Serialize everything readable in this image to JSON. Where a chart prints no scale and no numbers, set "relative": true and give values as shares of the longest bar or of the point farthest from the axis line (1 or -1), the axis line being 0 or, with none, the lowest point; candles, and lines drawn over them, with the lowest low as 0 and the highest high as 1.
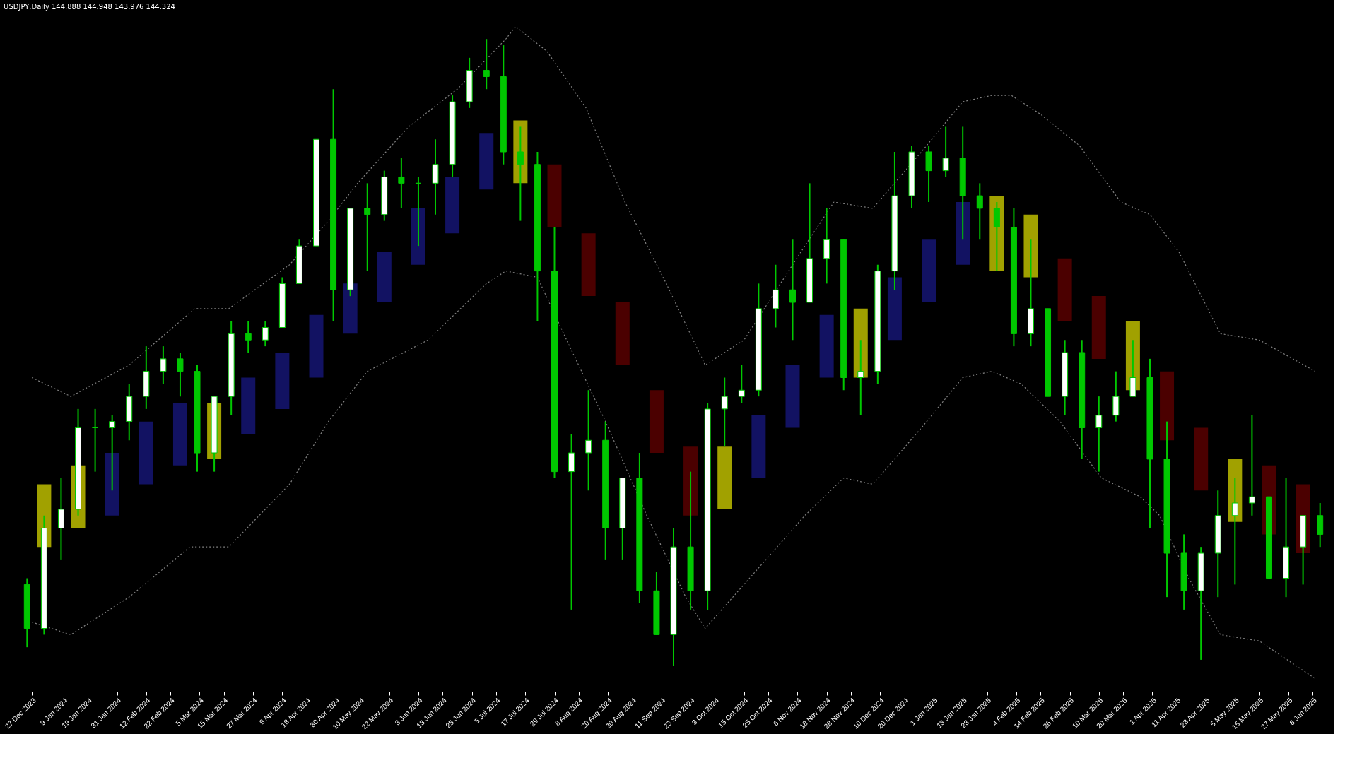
{
  "chart_data": {
    "type": "candlestick",
    "title": "USDJPY,Daily 144.888 144.948 143.976 144.324",
    "relative": true,
    "grid": false,
    "xlim": [
      "2023-12-22",
      "2025-06-12"
    ],
    "xticks": [
      {
        "value": "2023-12-27",
        "label": "27 Dec 2023"
      },
      {
        "value": "2024-01-09",
        "label": "9 Jan 2024"
      },
      {
        "value": "2024-01-19",
        "label": "19 Jan 2024"
      },
      {
        "value": "2024-01-31",
        "label": "31 Jan 2024"
      },
      {
        "value": "2024-02-12",
        "label": "12 Feb 2024"
      },
      {
        "value": "2024-02-22",
        "label": "22 Feb 2024"
      },
      {
        "value": "2024-03-05",
        "label": "5 Mar 2024"
      },
      {
        "value": "2024-03-15",
        "label": "15 Mar 2024"
      },
      {
        "value": "2024-03-27",
        "label": "27 Mar 2024"
      },
      {
        "value": "2024-04-08",
        "label": "8 Apr 2024"
      },
      {
        "value": "2024-04-18",
        "label": "18 Apr 2024"
      },
      {
        "value": "2024-04-30",
        "label": "30 Apr 2024"
      },
      {
        "value": "2024-05-10",
        "label": "10 May 2024"
      },
      {
        "value": "2024-05-22",
        "label": "22 May 2024"
      },
      {
        "value": "2024-06-03",
        "label": "3 Jun 2024"
      },
      {
        "value": "2024-06-13",
        "label": "13 Jun 2024"
      },
      {
        "value": "2024-06-25",
        "label": "25 Jun 2024"
      },
      {
        "value": "2024-07-05",
        "label": "5 Jul 2024"
      },
      {
        "value": "2024-07-17",
        "label": "17 Jul 2024"
      },
      {
        "value": "2024-07-29",
        "label": "29 Jul 2024"
      },
      {
        "value": "2024-08-08",
        "label": "8 Aug 2024"
      },
      {
        "value": "2024-08-20",
        "label": "20 Aug 2024"
      },
      {
        "value": "2024-08-30",
        "label": "30 Aug 2024"
      },
      {
        "value": "2024-09-11",
        "label": "11 Sep 2024"
      },
      {
        "value": "2024-09-23",
        "label": "23 Sep 2024"
      },
      {
        "value": "2024-10-03",
        "label": "3 Oct 2024"
      },
      {
        "value": "2024-10-15",
        "label": "15 Oct 2024"
      },
      {
        "value": "2024-10-25",
        "label": "25 Oct 2024"
      },
      {
        "value": "2024-11-06",
        "label": "6 Nov 2024"
      },
      {
        "value": "2024-11-18",
        "label": "18 Nov 2024"
      },
      {
        "value": "2024-11-28",
        "label": "28 Nov 2024"
      },
      {
        "value": "2024-12-10",
        "label": "10 Dec 2024"
      },
      {
        "value": "2024-12-20",
        "label": "20 Dec 2024"
      },
      {
        "value": "2025-01-01",
        "label": "1 Jan 2025"
      },
      {
        "value": "2025-01-13",
        "label": "13 Jan 2025"
      },
      {
        "value": "2025-01-23",
        "label": "23 Jan 2025"
      },
      {
        "value": "2025-02-04",
        "label": "4 Feb 2025"
      },
      {
        "value": "2025-02-14",
        "label": "14 Feb 2025"
      },
      {
        "value": "2025-02-26",
        "label": "26 Feb 2025"
      },
      {
        "value": "2025-03-10",
        "label": "10 Mar 2025"
      },
      {
        "value": "2025-03-20",
        "label": "20 Mar 2025"
      },
      {
        "value": "2025-04-01",
        "label": "1 Apr 2025"
      },
      {
        "value": "2025-04-11",
        "label": "11 Apr 2025"
      },
      {
        "value": "2025-04-23",
        "label": "23 Apr 2025"
      },
      {
        "value": "2025-05-05",
        "label": "5 May 2025"
      },
      {
        "value": "2025-05-15",
        "label": "15 May 2025"
      },
      {
        "value": "2025-05-27",
        "label": "27 May 2025"
      },
      {
        "value": "2025-06-06",
        "label": "6 Jun 2025"
      }
    ],
    "series": [
      {
        "type": "bar",
        "x": [
          "2024-01-01",
          "2024-01-15",
          "2024-01-29",
          "2024-02-12",
          "2024-02-26",
          "2024-03-11",
          "2024-03-25",
          "2024-04-08",
          "2024-04-22",
          "2024-05-06",
          "2024-05-20",
          "2024-06-03",
          "2024-06-17",
          "2024-07-01",
          "2024-07-15",
          "2024-07-29",
          "2024-08-12",
          "2024-08-26",
          "2024-09-09",
          "2024-09-23",
          "2024-10-07",
          "2024-10-21",
          "2024-11-04",
          "2024-11-18",
          "2024-12-02",
          "2024-12-16",
          "2024-12-30",
          "2025-01-13",
          "2025-01-27",
          "2025-02-10",
          "2025-02-24",
          "2025-03-10",
          "2025-03-24",
          "2025-04-07",
          "2025-04-21",
          "2025-05-05",
          "2025-05-19",
          "2025-06-02"
        ],
        "base": [
          0.19,
          0.22,
          0.24,
          0.29,
          0.32,
          0.33,
          0.37,
          0.41,
          0.46,
          0.53,
          0.58,
          0.64,
          0.69,
          0.76,
          0.77,
          0.7,
          0.59,
          0.48,
          0.34,
          0.24,
          0.25,
          0.3,
          0.38,
          0.46,
          0.46,
          0.52,
          0.58,
          0.64,
          0.63,
          0.62,
          0.55,
          0.49,
          0.44,
          0.36,
          0.28,
          0.23,
          0.21,
          0.18
        ],
        "values": [
          0.1,
          0.1,
          0.1,
          0.1,
          0.1,
          0.09,
          0.09,
          0.09,
          0.1,
          0.08,
          0.08,
          0.09,
          0.09,
          0.09,
          0.1,
          0.1,
          0.1,
          0.1,
          0.1,
          0.11,
          0.1,
          0.1,
          0.1,
          0.1,
          0.11,
          0.1,
          0.1,
          0.1,
          0.12,
          0.1,
          0.1,
          0.1,
          0.11,
          0.11,
          0.1,
          0.1,
          0.11,
          0.11
        ],
        "colors": [
          "#e6e600",
          "#e6e600",
          "#1a1a8c",
          "#1a1a8c",
          "#1a1a8c",
          "#e6e600",
          "#1a1a8c",
          "#1a1a8c",
          "#1a1a8c",
          "#1a1a8c",
          "#1a1a8c",
          "#1a1a8c",
          "#1a1a8c",
          "#1a1a8c",
          "#e6e600",
          "#6b0000",
          "#6b0000",
          "#6b0000",
          "#6b0000",
          "#6b0000",
          "#e6e600",
          "#1a1a8c",
          "#1a1a8c",
          "#1a1a8c",
          "#e6e600",
          "#1a1a8c",
          "#1a1a8c",
          "#1a1a8c",
          "#e6e600",
          "#e6e600",
          "#6b0000",
          "#6b0000",
          "#e6e600",
          "#6b0000",
          "#6b0000",
          "#e6e600",
          "#6b0000",
          "#6b0000"
        ]
      },
      {
        "type": "line",
        "line_style": "dotted",
        "color": "#808080",
        "x": [
          "2023-12-27",
          "2024-01-12",
          "2024-02-05",
          "2024-03-03",
          "2024-03-17",
          "2024-04-11",
          "2024-04-27",
          "2024-05-09",
          "2024-05-30",
          "2024-06-19",
          "2024-07-09",
          "2024-07-13",
          "2024-07-26",
          "2024-08-11",
          "2024-08-27",
          "2024-09-13",
          "2024-09-29",
          "2024-10-15",
          "2024-11-09",
          "2024-11-21",
          "2024-12-07",
          "2024-12-27",
          "2025-01-13",
          "2025-01-25",
          "2025-02-02",
          "2025-02-14",
          "2025-03-02",
          "2025-03-19",
          "2025-03-31",
          "2025-04-12",
          "2025-04-29",
          "2025-05-15",
          "2025-06-07"
        ],
        "values": [
          0.46,
          0.43,
          0.48,
          0.57,
          0.57,
          0.64,
          0.71,
          0.77,
          0.86,
          0.92,
          1.0,
          1.02,
          0.98,
          0.89,
          0.74,
          0.61,
          0.48,
          0.52,
          0.67,
          0.74,
          0.73,
          0.82,
          0.9,
          0.91,
          0.91,
          0.88,
          0.83,
          0.74,
          0.72,
          0.66,
          0.53,
          0.52,
          0.47
        ]
      },
      {
        "type": "line",
        "line_style": "dotted",
        "color": "#808080",
        "x": [
          "2023-12-27",
          "2024-01-12",
          "2024-02-05",
          "2024-03-01",
          "2024-03-17",
          "2024-04-11",
          "2024-04-27",
          "2024-05-13",
          "2024-06-07",
          "2024-07-01",
          "2024-07-09",
          "2024-07-22",
          "2024-08-03",
          "2024-08-19",
          "2024-09-05",
          "2024-09-21",
          "2024-09-29",
          "2024-10-15",
          "2024-11-09",
          "2024-11-25",
          "2024-12-07",
          "2024-12-27",
          "2025-01-13",
          "2025-01-25",
          "2025-02-06",
          "2025-02-22",
          "2025-03-11",
          "2025-03-27",
          "2025-04-04",
          "2025-04-16",
          "2025-04-29",
          "2025-05-15",
          "2025-06-07"
        ],
        "values": [
          0.07,
          0.05,
          0.11,
          0.19,
          0.19,
          0.29,
          0.39,
          0.47,
          0.52,
          0.61,
          0.63,
          0.62,
          0.52,
          0.39,
          0.24,
          0.11,
          0.06,
          0.13,
          0.24,
          0.3,
          0.29,
          0.38,
          0.46,
          0.47,
          0.45,
          0.39,
          0.3,
          0.27,
          0.24,
          0.14,
          0.05,
          0.04,
          -0.02
        ]
      },
      {
        "type": "candlestick",
        "color": "#00c800",
        "x": [
          "2023-12-25",
          "2024-01-01",
          "2024-01-08",
          "2024-01-15",
          "2024-01-22",
          "2024-01-29",
          "2024-02-05",
          "2024-02-12",
          "2024-02-19",
          "2024-02-26",
          "2024-03-04",
          "2024-03-11",
          "2024-03-18",
          "2024-03-25",
          "2024-04-01",
          "2024-04-08",
          "2024-04-15",
          "2024-04-22",
          "2024-04-29",
          "2024-05-06",
          "2024-05-13",
          "2024-05-20",
          "2024-05-27",
          "2024-06-03",
          "2024-06-10",
          "2024-06-17",
          "2024-06-24",
          "2024-07-01",
          "2024-07-08",
          "2024-07-15",
          "2024-07-22",
          "2024-07-29",
          "2024-08-05",
          "2024-08-12",
          "2024-08-19",
          "2024-08-26",
          "2024-09-02",
          "2024-09-09",
          "2024-09-16",
          "2024-09-23",
          "2024-09-30",
          "2024-10-07",
          "2024-10-14",
          "2024-10-21",
          "2024-10-28",
          "2024-11-04",
          "2024-11-11",
          "2024-11-18",
          "2024-11-25",
          "2024-12-02",
          "2024-12-09",
          "2024-12-16",
          "2024-12-23",
          "2024-12-30",
          "2025-01-06",
          "2025-01-13",
          "2025-01-20",
          "2025-01-27",
          "2025-02-03",
          "2025-02-10",
          "2025-02-17",
          "2025-02-24",
          "2025-03-03",
          "2025-03-10",
          "2025-03-17",
          "2025-03-24",
          "2025-03-31",
          "2025-04-07",
          "2025-04-14",
          "2025-04-21",
          "2025-04-28",
          "2025-05-05",
          "2025-05-12",
          "2025-05-19",
          "2025-05-26",
          "2025-06-02",
          "2025-06-09"
        ],
        "ohlc": [
          [
            0.13,
            0.14,
            0.03,
            0.06
          ],
          [
            0.06,
            0.24,
            0.05,
            0.22
          ],
          [
            0.22,
            0.3,
            0.17,
            0.25
          ],
          [
            0.25,
            0.41,
            0.24,
            0.38
          ],
          [
            0.38,
            0.41,
            0.31,
            0.38
          ],
          [
            0.38,
            0.4,
            0.28,
            0.39
          ],
          [
            0.39,
            0.45,
            0.36,
            0.43
          ],
          [
            0.43,
            0.51,
            0.41,
            0.47
          ],
          [
            0.47,
            0.51,
            0.45,
            0.49
          ],
          [
            0.49,
            0.5,
            0.43,
            0.47
          ],
          [
            0.47,
            0.48,
            0.31,
            0.34
          ],
          [
            0.34,
            0.43,
            0.31,
            0.43
          ],
          [
            0.43,
            0.55,
            0.4,
            0.53
          ],
          [
            0.53,
            0.55,
            0.5,
            0.52
          ],
          [
            0.52,
            0.55,
            0.51,
            0.54
          ],
          [
            0.54,
            0.62,
            0.54,
            0.61
          ],
          [
            0.61,
            0.68,
            0.61,
            0.67
          ],
          [
            0.67,
            0.84,
            0.67,
            0.84
          ],
          [
            0.84,
            0.92,
            0.55,
            0.6
          ],
          [
            0.6,
            0.73,
            0.59,
            0.73
          ],
          [
            0.73,
            0.77,
            0.63,
            0.72
          ],
          [
            0.72,
            0.79,
            0.71,
            0.78
          ],
          [
            0.78,
            0.81,
            0.73,
            0.77
          ],
          [
            0.77,
            0.78,
            0.67,
            0.77
          ],
          [
            0.77,
            0.84,
            0.72,
            0.8
          ],
          [
            0.8,
            0.91,
            0.78,
            0.9
          ],
          [
            0.9,
            0.97,
            0.89,
            0.95
          ],
          [
            0.95,
            1.0,
            0.92,
            0.94
          ],
          [
            0.94,
            0.99,
            0.8,
            0.82
          ],
          [
            0.82,
            0.86,
            0.71,
            0.8
          ],
          [
            0.8,
            0.82,
            0.55,
            0.63
          ],
          [
            0.63,
            0.7,
            0.3,
            0.31
          ],
          [
            0.31,
            0.37,
            0.09,
            0.34
          ],
          [
            0.34,
            0.44,
            0.28,
            0.36
          ],
          [
            0.36,
            0.39,
            0.17,
            0.22
          ],
          [
            0.22,
            0.3,
            0.17,
            0.3
          ],
          [
            0.3,
            0.34,
            0.1,
            0.12
          ],
          [
            0.12,
            0.15,
            0.05,
            0.05
          ],
          [
            0.05,
            0.22,
            0.0,
            0.19
          ],
          [
            0.19,
            0.31,
            0.09,
            0.12
          ],
          [
            0.12,
            0.42,
            0.09,
            0.41
          ],
          [
            0.41,
            0.46,
            0.35,
            0.43
          ],
          [
            0.43,
            0.48,
            0.42,
            0.44
          ],
          [
            0.44,
            0.61,
            0.43,
            0.57
          ],
          [
            0.57,
            0.64,
            0.54,
            0.6
          ],
          [
            0.6,
            0.68,
            0.52,
            0.58
          ],
          [
            0.58,
            0.77,
            0.58,
            0.65
          ],
          [
            0.65,
            0.73,
            0.61,
            0.68
          ],
          [
            0.68,
            0.68,
            0.44,
            0.46
          ],
          [
            0.46,
            0.52,
            0.4,
            0.47
          ],
          [
            0.47,
            0.64,
            0.45,
            0.63
          ],
          [
            0.63,
            0.82,
            0.6,
            0.75
          ],
          [
            0.75,
            0.83,
            0.73,
            0.82
          ],
          [
            0.82,
            0.83,
            0.74,
            0.79
          ],
          [
            0.79,
            0.86,
            0.78,
            0.81
          ],
          [
            0.81,
            0.86,
            0.68,
            0.75
          ],
          [
            0.75,
            0.77,
            0.68,
            0.73
          ],
          [
            0.73,
            0.74,
            0.63,
            0.7
          ],
          [
            0.7,
            0.73,
            0.51,
            0.53
          ],
          [
            0.53,
            0.68,
            0.51,
            0.57
          ],
          [
            0.57,
            0.57,
            0.43,
            0.43
          ],
          [
            0.43,
            0.52,
            0.4,
            0.5
          ],
          [
            0.5,
            0.52,
            0.33,
            0.38
          ],
          [
            0.38,
            0.43,
            0.31,
            0.4
          ],
          [
            0.4,
            0.47,
            0.39,
            0.43
          ],
          [
            0.43,
            0.52,
            0.43,
            0.46
          ],
          [
            0.46,
            0.49,
            0.22,
            0.33
          ],
          [
            0.33,
            0.39,
            0.11,
            0.18
          ],
          [
            0.18,
            0.21,
            0.09,
            0.12
          ],
          [
            0.12,
            0.19,
            0.01,
            0.18
          ],
          [
            0.18,
            0.28,
            0.11,
            0.24
          ],
          [
            0.24,
            0.3,
            0.13,
            0.26
          ],
          [
            0.26,
            0.4,
            0.24,
            0.27
          ],
          [
            0.27,
            0.27,
            0.14,
            0.14
          ],
          [
            0.14,
            0.3,
            0.11,
            0.19
          ],
          [
            0.19,
            0.24,
            0.13,
            0.24
          ],
          [
            0.24,
            0.26,
            0.19,
            0.21
          ]
        ]
      }
    ]
  }
}
